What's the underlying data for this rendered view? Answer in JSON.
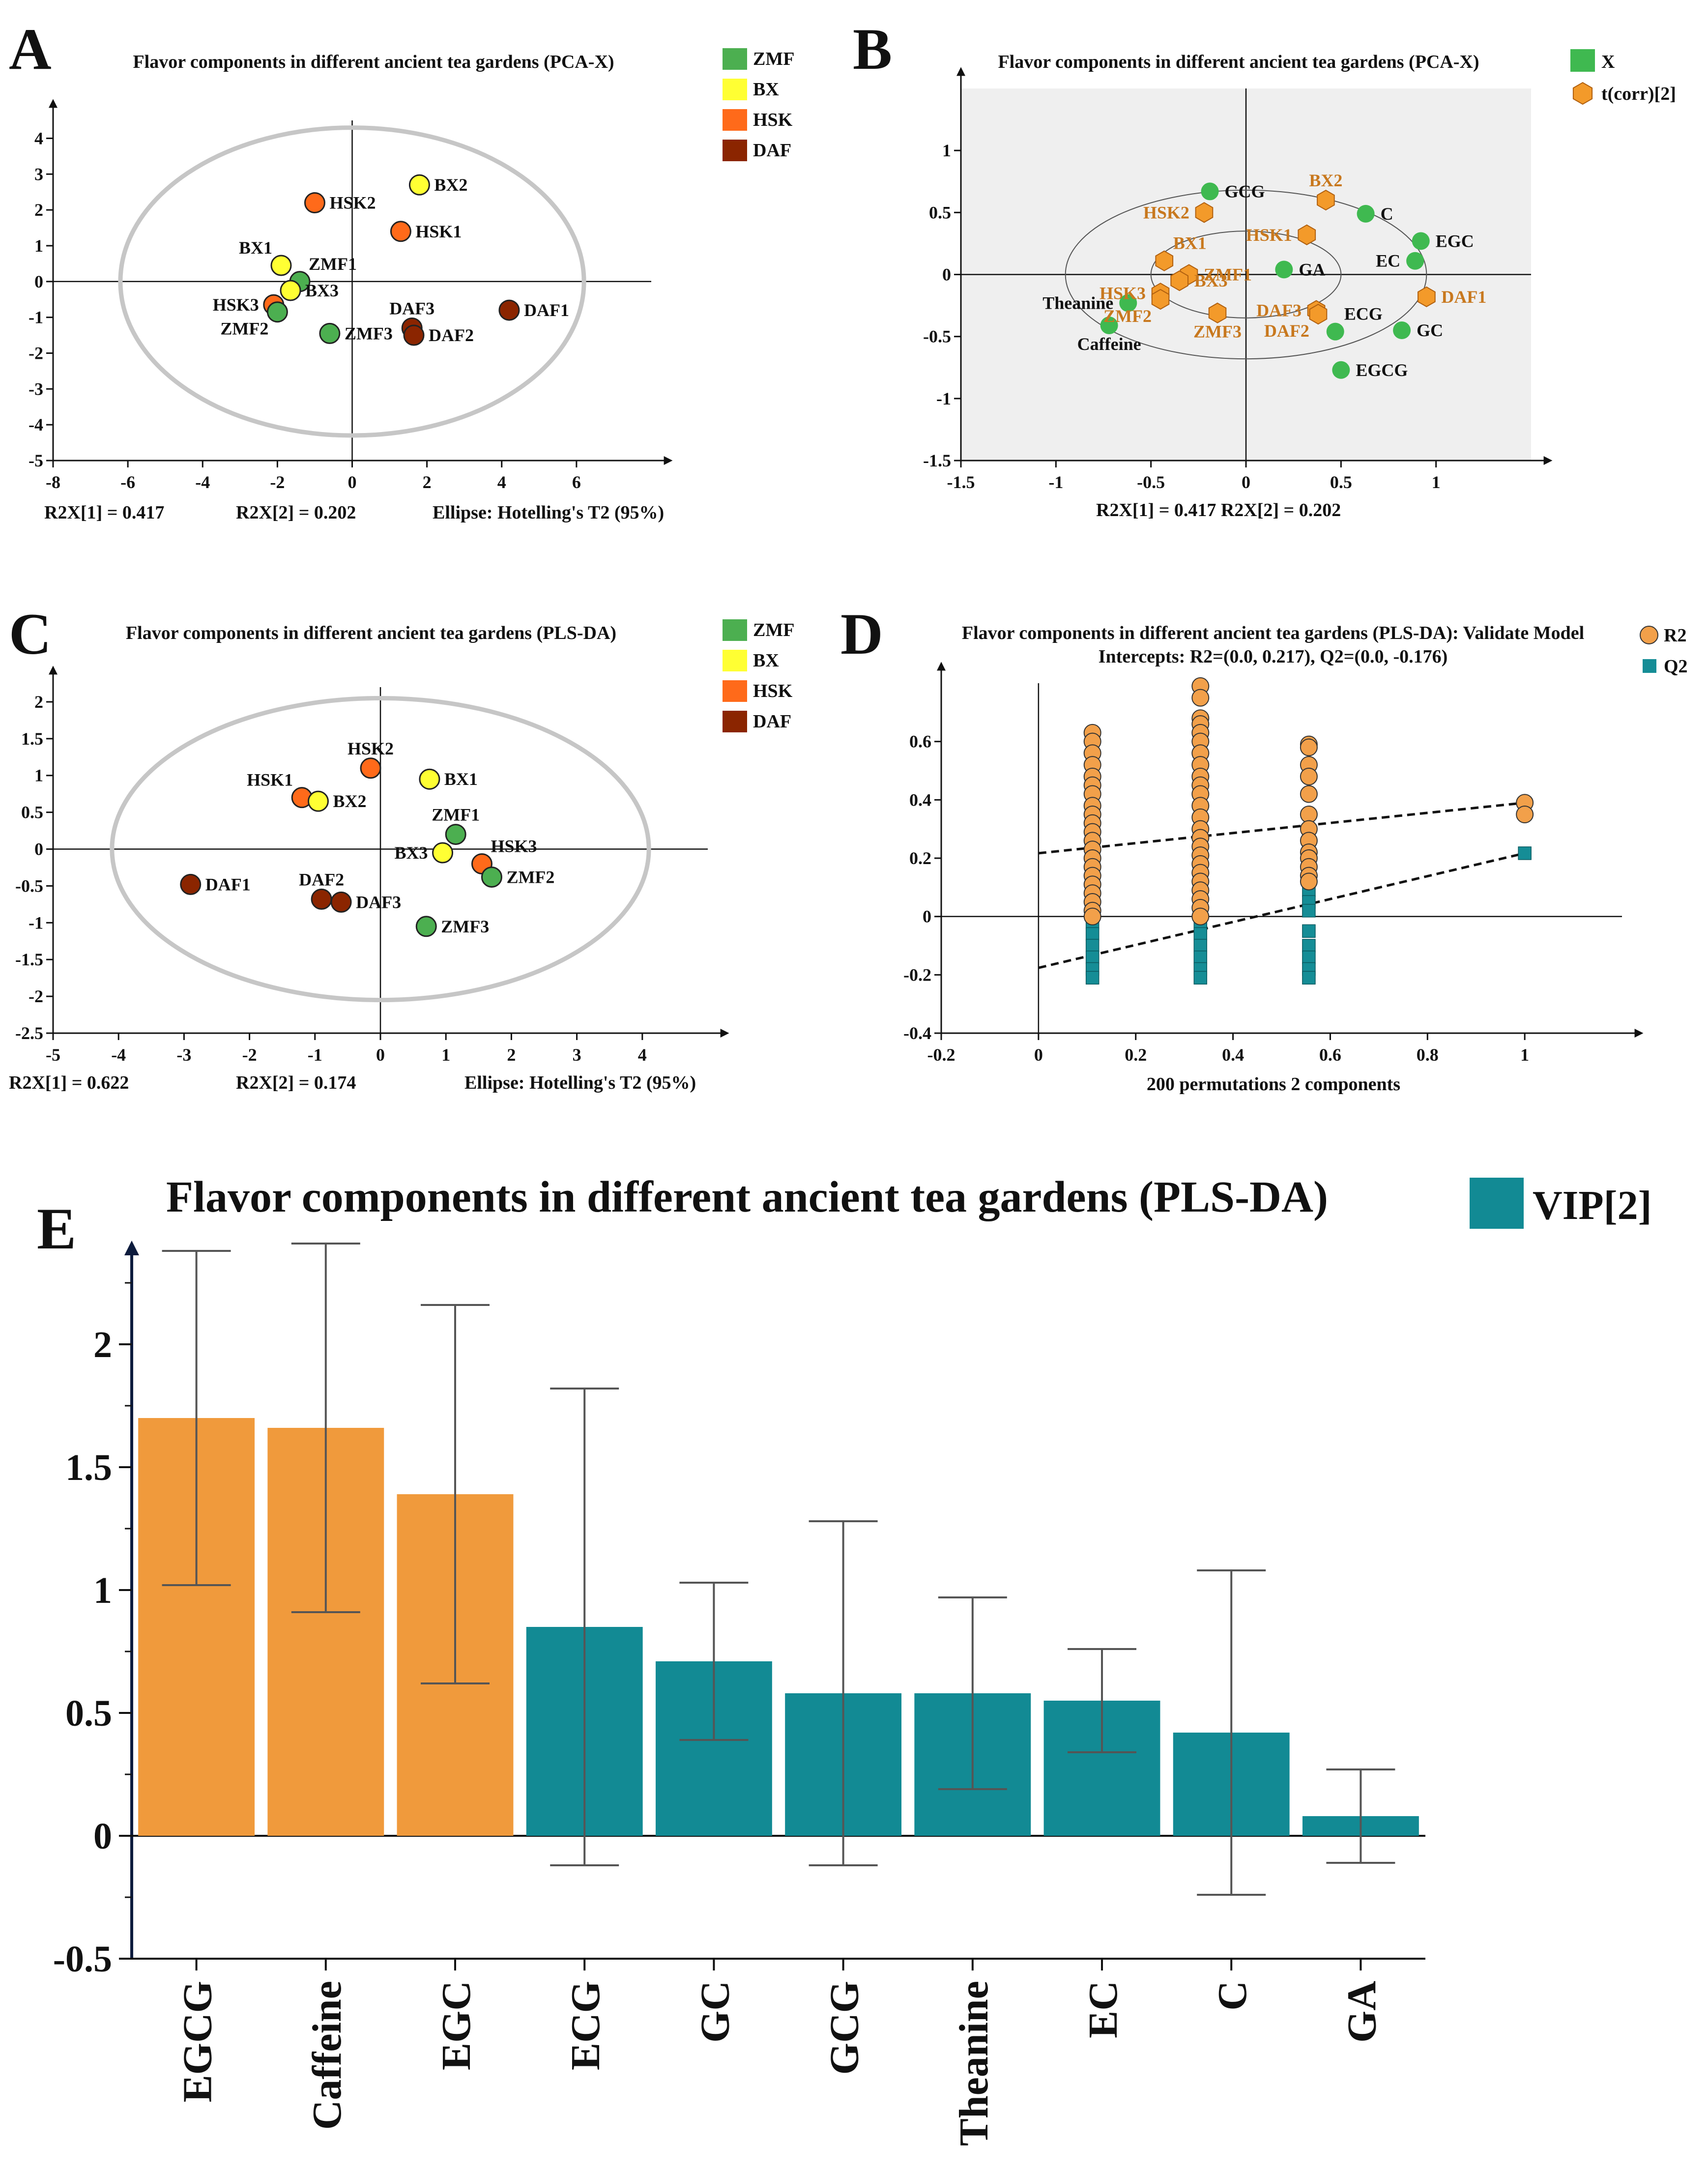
{
  "colors": {
    "ZMF": "#4caf50",
    "BX": "#ffff33",
    "HSK": "#ff6a1a",
    "DAF": "#8b2500",
    "legend_green": "#3fb950",
    "orange_label": "#c8781e",
    "hex_fill": "#f39a2a",
    "r2": "#f2a04a",
    "q2": "#158d96",
    "bar_orange": "#f09a3c",
    "bar_teal": "#128a94",
    "ellipse": "#c6c6c6",
    "shade": "#efefef"
  },
  "panels": {
    "A": {
      "letter": "A",
      "title": "Flavor components in different ancient tea gardens (PCA-X)",
      "footer": [
        "R2X[1] = 0.417",
        "R2X[2] = 0.202",
        "Ellipse: Hotelling's T2 (95%)"
      ]
    },
    "B": {
      "letter": "B",
      "title": "Flavor components in different ancient tea gardens (PCA-X)",
      "footer": [
        "R2X[1] = 0.417 R2X[2] = 0.202"
      ]
    },
    "C": {
      "letter": "C",
      "title": "Flavor components in different ancient tea gardens (PLS-DA)",
      "footer": [
        "R2X[1] = 0.622",
        "R2X[2] = 0.174",
        "Ellipse: Hotelling's T2 (95%)"
      ]
    },
    "D": {
      "letter": "D",
      "title": "Flavor components in different ancient tea gardens (PLS-DA): Validate Model",
      "subtitle": "Intercepts: R2=(0.0, 0.217), Q2=(0.0, -0.176)",
      "footer": [
        "200 permutations 2 components"
      ]
    },
    "E": {
      "letter": "E",
      "title": "Flavor components in different ancient tea gardens (PLS-DA)"
    }
  },
  "chart_data": [
    {
      "id": "A",
      "type": "scatter",
      "title": "Flavor components in different ancient tea gardens (PCA-X)",
      "xlim": [
        -8,
        8
      ],
      "ylim": [
        -5,
        4.5
      ],
      "xticks": [
        -8,
        -6,
        -4,
        -2,
        0,
        2,
        4,
        6
      ],
      "yticks": [
        -5,
        -4,
        -3,
        -2,
        -1,
        0,
        1,
        2,
        3,
        4
      ],
      "ellipse": {
        "rx": 6.2,
        "ry": 4.3
      },
      "legend": [
        {
          "label": "ZMF",
          "color": "#4caf50"
        },
        {
          "label": "BX",
          "color": "#ffff33"
        },
        {
          "label": "HSK",
          "color": "#ff6a1a"
        },
        {
          "label": "DAF",
          "color": "#8b2500"
        }
      ],
      "points": [
        {
          "label": "HSK2",
          "x": -1.0,
          "y": 2.2,
          "group": "HSK",
          "pos": "r"
        },
        {
          "label": "BX2",
          "x": 1.8,
          "y": 2.7,
          "group": "BX",
          "pos": "r"
        },
        {
          "label": "HSK1",
          "x": 1.3,
          "y": 1.4,
          "group": "HSK",
          "pos": "r"
        },
        {
          "label": "BX1",
          "x": -1.9,
          "y": 0.45,
          "group": "BX",
          "pos": "tl"
        },
        {
          "label": "ZMF1",
          "x": -1.4,
          "y": 0.0,
          "group": "ZMF",
          "pos": "tr"
        },
        {
          "label": "BX3",
          "x": -1.65,
          "y": -0.25,
          "group": "BX",
          "pos": "r"
        },
        {
          "label": "HSK3",
          "x": -2.1,
          "y": -0.65,
          "group": "HSK",
          "pos": "l"
        },
        {
          "label": "ZMF2",
          "x": -2.0,
          "y": -0.85,
          "group": "ZMF",
          "pos": "bl"
        },
        {
          "label": "ZMF3",
          "x": -0.6,
          "y": -1.45,
          "group": "ZMF",
          "pos": "r"
        },
        {
          "label": "DAF3",
          "x": 1.6,
          "y": -1.3,
          "group": "DAF",
          "pos": "t"
        },
        {
          "label": "DAF2",
          "x": 1.65,
          "y": -1.5,
          "group": "DAF",
          "pos": "r"
        },
        {
          "label": "DAF1",
          "x": 4.2,
          "y": -0.8,
          "group": "DAF",
          "pos": "r"
        }
      ]
    },
    {
      "id": "B",
      "type": "scatter",
      "title": "Flavor components in different ancient tea gardens (PCA-X)",
      "xlim": [
        -1.5,
        1.5
      ],
      "ylim": [
        -1.5,
        1.5
      ],
      "xticks": [
        -1.5,
        -1,
        -0.5,
        0,
        0.5,
        1
      ],
      "yticks": [
        -1.5,
        -1,
        -0.5,
        0,
        0.5,
        1
      ],
      "rings": [
        {
          "rx": 0.5,
          "ry": 0.35
        },
        {
          "rx": 0.95,
          "ry": 0.68
        }
      ],
      "legend": [
        {
          "label": "X",
          "marker": "square",
          "color": "#3fb950"
        },
        {
          "label": "t(corr)[2]",
          "marker": "hexagon",
          "color": "#f39a2a"
        }
      ],
      "variables": [
        {
          "label": "GCG",
          "x": -0.19,
          "y": 0.67,
          "pos": "r"
        },
        {
          "label": "C",
          "x": 0.63,
          "y": 0.49,
          "pos": "r"
        },
        {
          "label": "EGC",
          "x": 0.92,
          "y": 0.27,
          "pos": "r"
        },
        {
          "label": "EC",
          "x": 0.89,
          "y": 0.11,
          "pos": "l"
        },
        {
          "label": "GA",
          "x": 0.2,
          "y": 0.04,
          "pos": "r"
        },
        {
          "label": "Theanine",
          "x": -0.62,
          "y": -0.23,
          "pos": "l"
        },
        {
          "label": "ECG",
          "x": 0.47,
          "y": -0.46,
          "pos": "tr"
        },
        {
          "label": "GC",
          "x": 0.82,
          "y": -0.45,
          "pos": "r"
        },
        {
          "label": "Caffeine",
          "x": -0.72,
          "y": -0.41,
          "pos": "b"
        },
        {
          "label": "EGCG",
          "x": 0.5,
          "y": -0.77,
          "pos": "r"
        }
      ],
      "observations": [
        {
          "label": "BX2",
          "x": 0.42,
          "y": 0.6,
          "pos": "t"
        },
        {
          "label": "HSK2",
          "x": -0.22,
          "y": 0.5,
          "pos": "l"
        },
        {
          "label": "HSK1",
          "x": 0.32,
          "y": 0.32,
          "pos": "l"
        },
        {
          "label": "BX1",
          "x": -0.43,
          "y": 0.11,
          "pos": "tr"
        },
        {
          "label": "HSK3",
          "x": -0.45,
          "y": -0.15,
          "pos": "l"
        },
        {
          "label": "ZMF1",
          "x": -0.3,
          "y": 0.0,
          "pos": "r"
        },
        {
          "label": "BX3",
          "x": -0.35,
          "y": -0.05,
          "pos": "r"
        },
        {
          "label": "DAF1",
          "x": 0.95,
          "y": -0.18,
          "pos": "r"
        },
        {
          "label": "ZMF2",
          "x": -0.45,
          "y": -0.2,
          "pos": "bl"
        },
        {
          "label": "ZMF3",
          "x": -0.15,
          "y": -0.31,
          "pos": "b"
        },
        {
          "label": "DAF3",
          "x": 0.37,
          "y": -0.29,
          "pos": "l"
        },
        {
          "label": "DAF2",
          "x": 0.38,
          "y": -0.32,
          "pos": "bl"
        }
      ]
    },
    {
      "id": "C",
      "type": "scatter",
      "title": "Flavor components in different ancient tea gardens (PLS-DA)",
      "xlim": [
        -5,
        5
      ],
      "ylim": [
        -2.5,
        2.2
      ],
      "xticks": [
        -5,
        -4,
        -3,
        -2,
        -1,
        0,
        1,
        2,
        3,
        4
      ],
      "yticks": [
        -2.5,
        -2,
        -1.5,
        -1,
        -0.5,
        0,
        0.5,
        1,
        1.5,
        2
      ],
      "ellipse": {
        "rx": 4.1,
        "ry": 2.05
      },
      "legend": [
        {
          "label": "ZMF",
          "color": "#4caf50"
        },
        {
          "label": "BX",
          "color": "#ffff33"
        },
        {
          "label": "HSK",
          "color": "#ff6a1a"
        },
        {
          "label": "DAF",
          "color": "#8b2500"
        }
      ],
      "points": [
        {
          "label": "HSK2",
          "x": -0.15,
          "y": 1.1,
          "group": "HSK",
          "pos": "t"
        },
        {
          "label": "BX1",
          "x": 0.75,
          "y": 0.95,
          "group": "BX",
          "pos": "r"
        },
        {
          "label": "HSK1",
          "x": -1.2,
          "y": 0.7,
          "group": "HSK",
          "pos": "tl"
        },
        {
          "label": "BX2",
          "x": -0.95,
          "y": 0.65,
          "group": "BX",
          "pos": "r"
        },
        {
          "label": "ZMF1",
          "x": 1.15,
          "y": 0.2,
          "group": "ZMF",
          "pos": "t"
        },
        {
          "label": "BX3",
          "x": 0.95,
          "y": -0.05,
          "group": "BX",
          "pos": "l"
        },
        {
          "label": "HSK3",
          "x": 1.55,
          "y": -0.2,
          "group": "HSK",
          "pos": "tr"
        },
        {
          "label": "ZMF2",
          "x": 1.7,
          "y": -0.38,
          "group": "ZMF",
          "pos": "r"
        },
        {
          "label": "DAF1",
          "x": -2.9,
          "y": -0.48,
          "group": "DAF",
          "pos": "r"
        },
        {
          "label": "DAF2",
          "x": -0.9,
          "y": -0.68,
          "group": "DAF",
          "pos": "t"
        },
        {
          "label": "DAF3",
          "x": -0.6,
          "y": -0.72,
          "group": "DAF",
          "pos": "r"
        },
        {
          "label": "ZMF3",
          "x": 0.7,
          "y": -1.05,
          "group": "ZMF",
          "pos": "r"
        }
      ]
    },
    {
      "id": "D",
      "type": "scatter",
      "title": "Flavor components in different ancient tea gardens (PLS-DA): Validate Model",
      "subtitle": "Intercepts: R2=(0.0, 0.217), Q2=(0.0, -0.176)",
      "xlabel": "200 permutations 2 components",
      "xlim": [
        -0.2,
        1.2
      ],
      "ylim": [
        -0.4,
        0.8
      ],
      "xticks": [
        -0.2,
        0,
        0.2,
        0.4,
        0.6,
        0.8,
        1
      ],
      "yticks": [
        -0.4,
        -0.2,
        0,
        0.2,
        0.4,
        0.6
      ],
      "legend": [
        {
          "label": "R2",
          "marker": "circle",
          "color": "#f2a04a"
        },
        {
          "label": "Q2",
          "marker": "square",
          "color": "#158d96"
        }
      ],
      "r2_columns": [
        {
          "x": 0.111,
          "values": [
            0.63,
            0.6,
            0.56,
            0.52,
            0.48,
            0.45,
            0.42,
            0.38,
            0.35,
            0.32,
            0.29,
            0.26,
            0.23,
            0.2,
            0.17,
            0.14,
            0.11,
            0.08,
            0.05,
            0.02,
            0.0
          ]
        },
        {
          "x": 0.333,
          "values": [
            0.79,
            0.75,
            0.68,
            0.66,
            0.63,
            0.6,
            0.56,
            0.52,
            0.48,
            0.45,
            0.42,
            0.38,
            0.34,
            0.3,
            0.27,
            0.24,
            0.21,
            0.18,
            0.15,
            0.12,
            0.09,
            0.06,
            0.03,
            0.0
          ]
        },
        {
          "x": 0.556,
          "values": [
            0.59,
            0.58,
            0.52,
            0.48,
            0.42,
            0.35,
            0.3,
            0.26,
            0.22,
            0.2,
            0.17,
            0.14,
            0.12
          ]
        },
        {
          "x": 1.0,
          "values": [
            0.39,
            0.35
          ]
        }
      ],
      "q2_columns": [
        {
          "x": 0.111,
          "values": [
            0.33,
            0.3,
            0.26,
            0.22,
            0.18,
            0.14,
            0.1,
            0.06,
            0.02,
            -0.02,
            -0.06,
            -0.1,
            -0.14,
            -0.18,
            -0.21
          ]
        },
        {
          "x": 0.333,
          "values": [
            0.46,
            0.42,
            0.38,
            0.34,
            0.3,
            0.26,
            0.22,
            0.18,
            0.14,
            0.1,
            0.06,
            0.02,
            -0.02,
            -0.06,
            -0.1,
            -0.14,
            -0.18,
            -0.21
          ]
        },
        {
          "x": 0.556,
          "values": [
            0.29,
            0.25,
            0.21,
            0.17,
            0.13,
            0.09,
            0.05,
            0.02,
            -0.05,
            -0.1,
            -0.14,
            -0.18,
            -0.21
          ]
        },
        {
          "x": 1.0,
          "values": [
            0.217
          ]
        }
      ],
      "r2_line": {
        "intercept": 0.217,
        "end": [
          1.0,
          0.39
        ]
      },
      "q2_line": {
        "intercept": -0.176,
        "end": [
          1.0,
          0.217
        ]
      }
    },
    {
      "id": "E",
      "type": "bar",
      "title": "Flavor components in different ancient tea gardens (PLS-DA)",
      "legend": [
        {
          "label": "VIP[2]",
          "color": "#128a94"
        }
      ],
      "categories": [
        "EGCG",
        "Caffeine",
        "EGC",
        "ECG",
        "GC",
        "GCG",
        "Theanine",
        "EC",
        "C",
        "GA"
      ],
      "values": [
        1.7,
        1.66,
        1.39,
        0.85,
        0.71,
        0.58,
        0.58,
        0.55,
        0.42,
        0.08
      ],
      "errors": [
        0.68,
        0.75,
        0.77,
        0.97,
        0.32,
        0.7,
        0.39,
        0.21,
        0.66,
        0.19
      ],
      "highlight": [
        true,
        true,
        true,
        false,
        false,
        false,
        false,
        false,
        false,
        false
      ],
      "ylim": [
        -0.5,
        2.35
      ],
      "yticks": [
        -0.5,
        0,
        0.5,
        1,
        1.5,
        2
      ]
    }
  ]
}
